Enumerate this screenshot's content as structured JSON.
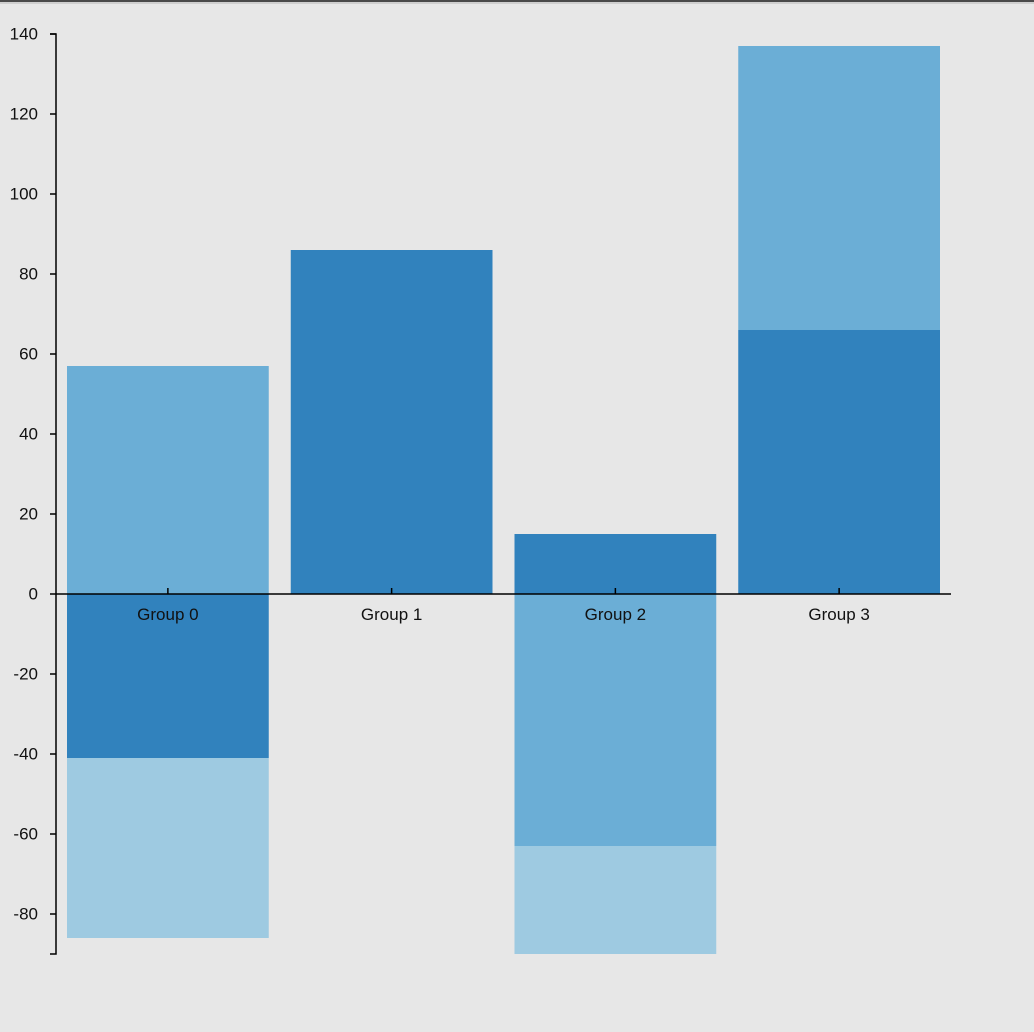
{
  "chart_data": {
    "type": "bar",
    "stacked": true,
    "title": "",
    "xlabel": "",
    "ylabel": "",
    "categories": [
      "Group 0",
      "Group 1",
      "Group 2",
      "Group 3"
    ],
    "series": [
      {
        "values": [
          -41,
          86,
          15,
          66
        ],
        "color": "#3182bd"
      },
      {
        "values": [
          57,
          0,
          -63,
          71
        ],
        "color": "#6baed6"
      },
      {
        "values": [
          -45,
          0,
          -27,
          0
        ],
        "color": "#9ecae1"
      }
    ],
    "ylim": [
      -90,
      140
    ],
    "yticks": [
      -80,
      -60,
      -40,
      -20,
      0,
      20,
      40,
      60,
      80,
      100,
      120,
      140
    ],
    "grid": false,
    "legend": "none"
  }
}
